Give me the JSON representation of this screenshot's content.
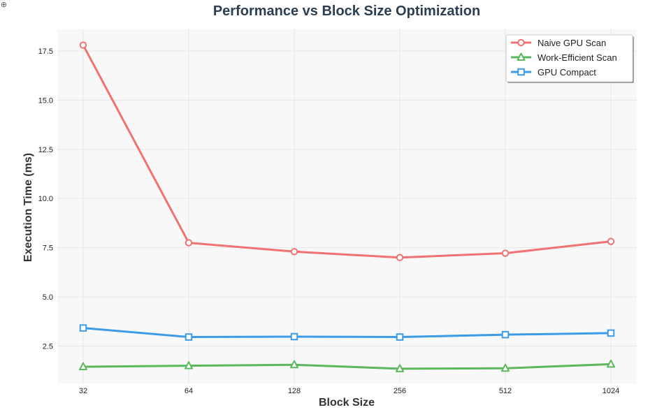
{
  "corner_glyph": "⊕",
  "chart_data": {
    "type": "line",
    "title": "Performance vs Block Size Optimization",
    "xlabel": "Block Size",
    "ylabel": "Execution Time (ms)",
    "categories": [
      "32",
      "64",
      "128",
      "256",
      "512",
      "1024"
    ],
    "ylim": [
      0.6,
      18.6
    ],
    "yticks": [
      "2.5",
      "5.0",
      "7.5",
      "10.0",
      "12.5",
      "15.0",
      "17.5"
    ],
    "grid": true,
    "legend_position": "top-right",
    "series": [
      {
        "name": "Naive GPU Scan",
        "values": [
          17.8,
          7.75,
          7.3,
          7.0,
          7.22,
          7.82
        ],
        "color": "#f07272",
        "marker": "circle"
      },
      {
        "name": "Work-Efficient Scan",
        "values": [
          1.45,
          1.5,
          1.55,
          1.35,
          1.37,
          1.58
        ],
        "color": "#5cb85c",
        "marker": "triangle"
      },
      {
        "name": "GPU Compact",
        "values": [
          3.42,
          2.96,
          2.98,
          2.96,
          3.08,
          3.16
        ],
        "color": "#3b9be6",
        "marker": "square"
      }
    ]
  }
}
